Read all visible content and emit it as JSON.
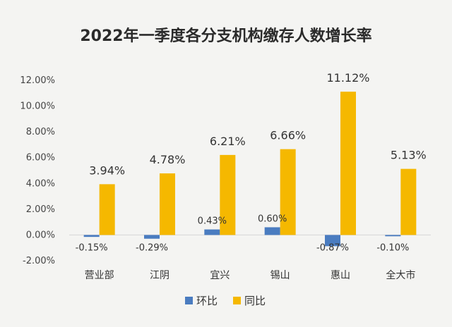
{
  "chart_data": {
    "type": "bar",
    "title": "2022年一季度各分支机构缴存人数增长率",
    "categories": [
      "营业部",
      "江阴",
      "宜兴",
      "锡山",
      "惠山",
      "全大市"
    ],
    "series": [
      {
        "name": "环比",
        "color": "#4a7cc0",
        "values": [
          -0.15,
          -0.29,
          0.43,
          0.6,
          -0.87,
          -0.1
        ],
        "labels": [
          "-0.15%",
          "-0.29%",
          "0.43%",
          "0.60%",
          "-0.87%",
          "-0.10%"
        ]
      },
      {
        "name": "同比",
        "color": "#f5b800",
        "values": [
          3.94,
          4.78,
          6.21,
          6.66,
          11.12,
          5.13
        ],
        "labels": [
          "3.94%",
          "4.78%",
          "6.21%",
          "6.66%",
          "11.12%",
          "5.13%"
        ]
      }
    ],
    "ylim": [
      -2,
      12
    ],
    "yticks": [
      12,
      10,
      8,
      6,
      4,
      2,
      0,
      -2
    ],
    "ytick_labels": [
      "12.00%",
      "10.00%",
      "8.00%",
      "6.00%",
      "4.00%",
      "2.00%",
      "0.00%",
      "-2.00%"
    ],
    "grid": false,
    "legend_position": "bottom"
  }
}
